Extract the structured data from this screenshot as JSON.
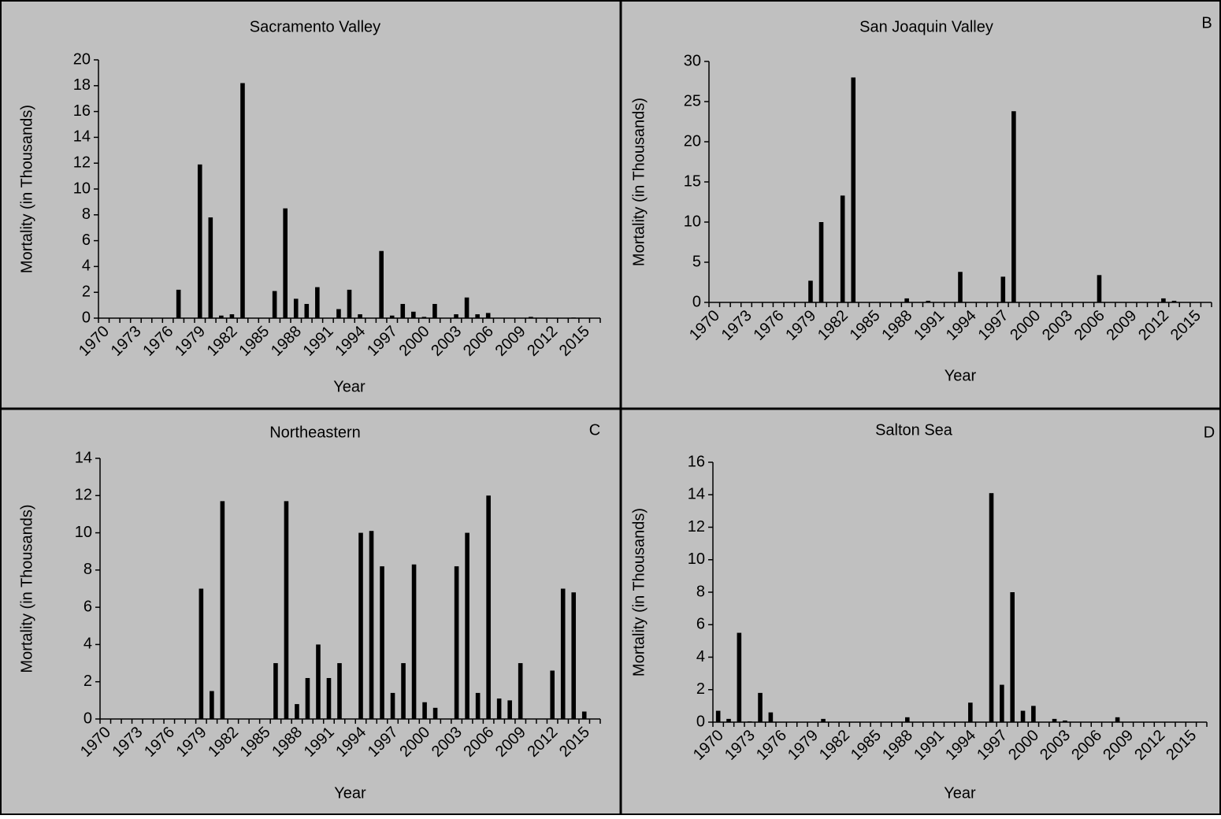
{
  "chart_data": [
    {
      "type": "bar",
      "title": "Sacramento Valley",
      "xlabel": "Year",
      "ylabel": "Mortality (in Thousands)",
      "color": "#000000",
      "grid": false,
      "categories": [
        "1970",
        null,
        null,
        "1973",
        null,
        null,
        "1976",
        null,
        null,
        "1979",
        null,
        null,
        "1982",
        null,
        null,
        "1985",
        null,
        null,
        "1988",
        null,
        null,
        "1991",
        null,
        null,
        "1994",
        null,
        null,
        "1997",
        null,
        null,
        "2000",
        null,
        null,
        "2003",
        null,
        null,
        "2006",
        null,
        null,
        "2009",
        null,
        null,
        "2012",
        null,
        null,
        "2015",
        null
      ],
      "values": [
        0,
        0,
        0,
        0,
        0,
        0,
        0,
        2.2,
        0,
        11.9,
        7.8,
        0.2,
        0.3,
        18.2,
        0,
        0,
        2.1,
        8.5,
        1.5,
        1.1,
        2.4,
        0,
        0.7,
        2.2,
        0.3,
        0,
        5.2,
        0.2,
        1.1,
        0.5,
        0.1,
        1.1,
        0,
        0.3,
        1.6,
        0.3,
        0.4,
        0,
        0,
        0,
        0.1,
        0,
        0,
        0,
        0.05,
        0,
        0
      ],
      "ylim": [
        0,
        20
      ],
      "yticks": [
        0,
        2,
        4,
        6,
        8,
        10,
        12,
        14,
        16,
        18,
        20
      ]
    },
    {
      "type": "bar",
      "title": "San Joaquin Valley",
      "label": "B",
      "xlabel": "Year",
      "ylabel": "Mortality (in Thousands)",
      "color": "#000000",
      "grid": false,
      "categories": [
        "1970",
        null,
        null,
        "1973",
        null,
        null,
        "1976",
        null,
        null,
        "1979",
        null,
        null,
        "1982",
        null,
        null,
        "1985",
        null,
        null,
        "1988",
        null,
        null,
        "1991",
        null,
        null,
        "1994",
        null,
        null,
        "1997",
        null,
        null,
        "2000",
        null,
        null,
        "2003",
        null,
        null,
        "2006",
        null,
        null,
        "2009",
        null,
        null,
        "2012",
        null,
        null,
        "2015",
        null
      ],
      "values": [
        0,
        0,
        0,
        0,
        0,
        0,
        0,
        0,
        0,
        2.7,
        10,
        0,
        13.3,
        28,
        0,
        0,
        0,
        0,
        0.5,
        0,
        0.2,
        0,
        0,
        3.8,
        0,
        0,
        0,
        3.2,
        23.8,
        0,
        0,
        0,
        0,
        0,
        0,
        0,
        3.4,
        0,
        0,
        0,
        0,
        0,
        0.5,
        0.2,
        0,
        0,
        0
      ],
      "ylim": [
        0,
        30
      ],
      "yticks": [
        0,
        5,
        10,
        15,
        20,
        25,
        30
      ]
    },
    {
      "type": "bar",
      "title": "Northeastern",
      "label": "C",
      "xlabel": "Year",
      "ylabel": "Mortality (in Thousands)",
      "color": "#000000",
      "grid": false,
      "categories": [
        "1970",
        null,
        null,
        "1973",
        null,
        null,
        "1976",
        null,
        null,
        "1979",
        null,
        null,
        "1982",
        null,
        null,
        "1985",
        null,
        null,
        "1988",
        null,
        null,
        "1991",
        null,
        null,
        "1994",
        null,
        null,
        "1997",
        null,
        null,
        "2000",
        null,
        null,
        "2003",
        null,
        null,
        "2006",
        null,
        null,
        "2009",
        null,
        null,
        "2012",
        null,
        null,
        "2015",
        null
      ],
      "values": [
        0,
        0,
        0,
        0,
        0,
        0,
        0,
        0,
        0,
        7,
        1.5,
        11.7,
        0,
        0,
        0,
        0,
        3,
        11.7,
        0.8,
        2.2,
        4,
        2.2,
        3,
        0,
        10,
        10.1,
        8.2,
        1.4,
        3,
        8.3,
        0.9,
        0.6,
        0,
        8.2,
        10,
        1.4,
        12,
        1.1,
        1,
        3,
        0,
        0,
        2.6,
        7,
        6.8,
        0.4,
        0
      ],
      "ylim": [
        0,
        14
      ],
      "yticks": [
        0,
        2,
        4,
        6,
        8,
        10,
        12,
        14
      ]
    },
    {
      "type": "bar",
      "title": "Salton Sea",
      "label": "D",
      "xlabel": "Year",
      "ylabel": "Mortality (in Thousands)",
      "color": "#000000",
      "grid": false,
      "categories": [
        "1970",
        null,
        null,
        "1973",
        null,
        null,
        "1976",
        null,
        null,
        "1979",
        null,
        null,
        "1982",
        null,
        null,
        "1985",
        null,
        null,
        "1988",
        null,
        null,
        "1991",
        null,
        null,
        "1994",
        null,
        null,
        "1997",
        null,
        null,
        "2000",
        null,
        null,
        "2003",
        null,
        null,
        "2006",
        null,
        null,
        "2009",
        null,
        null,
        "2012",
        null,
        null,
        "2015",
        null
      ],
      "values": [
        0.7,
        0.2,
        5.5,
        0.05,
        1.8,
        0.6,
        0,
        0,
        0,
        0,
        0.2,
        0,
        0,
        0,
        0,
        0,
        0,
        0,
        0.3,
        0,
        0,
        0,
        0,
        0,
        1.2,
        0,
        14.1,
        2.3,
        8,
        0.7,
        1,
        0,
        0.2,
        0.1,
        0,
        0,
        0,
        0,
        0.3,
        0,
        0,
        0,
        0,
        0,
        0,
        0,
        0
      ],
      "ylim": [
        0,
        16
      ],
      "yticks": [
        0,
        2,
        4,
        6,
        8,
        10,
        12,
        14,
        16
      ]
    }
  ]
}
